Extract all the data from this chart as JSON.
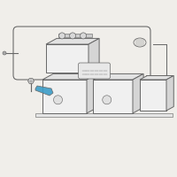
{
  "bg_color": "#f0eeea",
  "line_color": "#666666",
  "highlight_color": "#3b9dc8",
  "lw": 0.7,
  "face_front": "#f0f0f0",
  "face_top": "#e2e2e2",
  "face_right": "#d5d5d5"
}
